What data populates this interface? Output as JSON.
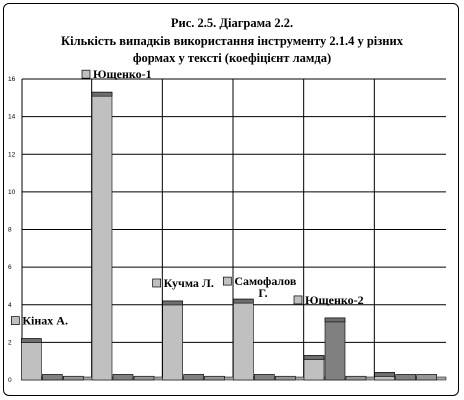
{
  "chart_data": {
    "type": "bar",
    "title": "Рис. 2.5. Діаграма 2.2.",
    "subtitle_lines": [
      "Кількість випадків використання інструменту 2.1.4 у різних",
      "формах у тексті (коефіцієнт ламда)"
    ],
    "xlabel": "",
    "ylabel": "",
    "ylim": [
      0,
      16
    ],
    "yticks": [
      "0",
      "2",
      "4",
      "6",
      "8",
      "10",
      "12",
      "14",
      "16"
    ],
    "grid": true,
    "series_colors": [
      "#c0c0c0",
      "#808080",
      "#969696"
    ],
    "groups": [
      {
        "label": "Кінах А.",
        "values": [
          2.2,
          0.3,
          0.2
        ]
      },
      {
        "label": "Ющенко-1",
        "values": [
          15.3,
          0.3,
          0.2
        ]
      },
      {
        "label": "Кучма Л.",
        "values": [
          4.2,
          0.3,
          0.2
        ]
      },
      {
        "label": "Самофалов Г.",
        "values": [
          4.3,
          0.3,
          0.2
        ]
      },
      {
        "label": "Ющенко-2",
        "values": [
          1.3,
          3.3,
          0.2
        ]
      },
      {
        "label": "",
        "values": [
          0.4,
          0.3,
          0.3
        ]
      }
    ]
  }
}
